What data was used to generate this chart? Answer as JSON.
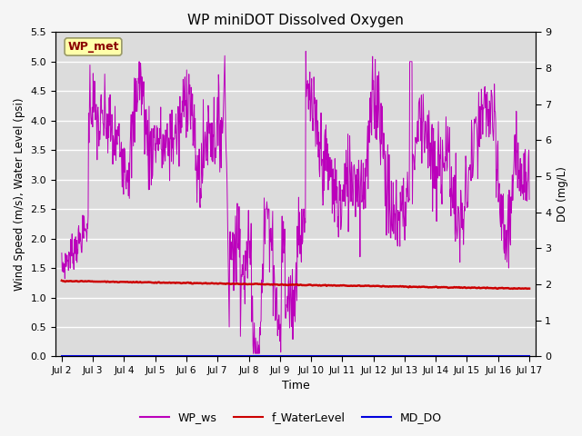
{
  "title": "WP miniDOT Dissolved Oxygen",
  "xlabel": "Time",
  "ylabel_left": "Wind Speed (m/s), Water Level (psi)",
  "ylabel_right": "DO (mg/L)",
  "ylim_left": [
    0.0,
    5.5
  ],
  "ylim_right": [
    0.0,
    9.0
  ],
  "yticks_left": [
    0.0,
    0.5,
    1.0,
    1.5,
    2.0,
    2.5,
    3.0,
    3.5,
    4.0,
    4.5,
    5.0,
    5.5
  ],
  "yticks_right": [
    0.0,
    1.0,
    2.0,
    3.0,
    4.0,
    5.0,
    6.0,
    7.0,
    8.0,
    9.0
  ],
  "xtick_labels": [
    "Jul 2",
    "Jul 3",
    "Jul 4",
    "Jul 5",
    "Jul 6",
    "Jul 7",
    "Jul 8",
    "Jul 9",
    "Jul 10",
    "Jul 11",
    "Jul 12",
    "Jul 13",
    "Jul 14",
    "Jul 15",
    "Jul 16",
    "Jul 17"
  ],
  "color_ws": "#bb00bb",
  "color_wl": "#cc0000",
  "color_do": "#0000dd",
  "bg_color": "#dcdcdc",
  "annotation_label": "WP_met",
  "annotation_color": "#8b0000",
  "annotation_bg": "#ffffaa",
  "legend_labels": [
    "WP_ws",
    "f_WaterLevel",
    "MD_DO"
  ],
  "legend_colors": [
    "#bb00bb",
    "#cc0000",
    "#0000dd"
  ]
}
